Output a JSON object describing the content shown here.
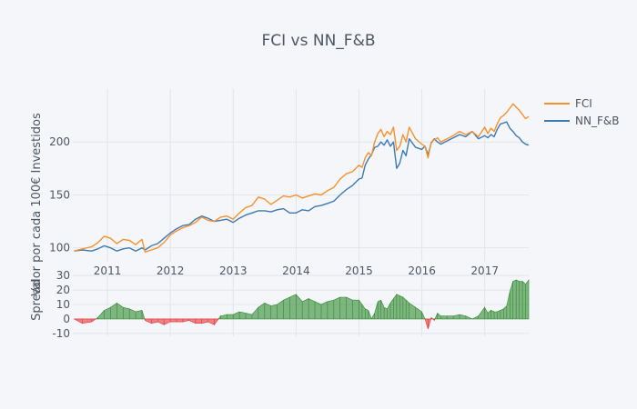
{
  "chart_data": {
    "type": "line",
    "title": "FCI vs NN_F&B",
    "xlabel": "",
    "ylabel_top": "Valor por cada 100€ Investidos",
    "ylabel_bottom": "Spread",
    "x_ticks": [
      "2011",
      "2012",
      "2013",
      "2014",
      "2015",
      "2016",
      "2017"
    ],
    "x_range": [
      2010.45,
      2017.7
    ],
    "top_panel": {
      "ylim": [
        92,
        250
      ],
      "y_ticks": [
        100,
        150,
        200
      ],
      "series": [
        {
          "name": "FCI",
          "color": "#f5922f",
          "x": [
            2010.47,
            2010.6,
            2010.75,
            2010.85,
            2010.95,
            2011.05,
            2011.15,
            2011.25,
            2011.35,
            2011.45,
            2011.55,
            2011.6,
            2011.7,
            2011.8,
            2011.9,
            2012.0,
            2012.1,
            2012.2,
            2012.3,
            2012.4,
            2012.5,
            2012.6,
            2012.7,
            2012.8,
            2012.9,
            2013.0,
            2013.1,
            2013.2,
            2013.3,
            2013.4,
            2013.5,
            2013.6,
            2013.7,
            2013.8,
            2013.9,
            2014.0,
            2014.1,
            2014.2,
            2014.3,
            2014.4,
            2014.5,
            2014.6,
            2014.7,
            2014.8,
            2014.9,
            2015.0,
            2015.05,
            2015.1,
            2015.15,
            2015.2,
            2015.25,
            2015.3,
            2015.35,
            2015.4,
            2015.45,
            2015.5,
            2015.55,
            2015.6,
            2015.65,
            2015.7,
            2015.75,
            2015.8,
            2015.9,
            2016.0,
            2016.05,
            2016.1,
            2016.15,
            2016.2,
            2016.25,
            2016.3,
            2016.4,
            2016.5,
            2016.6,
            2016.7,
            2016.8,
            2016.9,
            2017.0,
            2017.05,
            2017.1,
            2017.15,
            2017.2,
            2017.25,
            2017.3,
            2017.35,
            2017.4,
            2017.45,
            2017.5,
            2017.55,
            2017.6,
            2017.65,
            2017.7
          ],
          "values": [
            97,
            99,
            101,
            105,
            111,
            109,
            104,
            108,
            107,
            103,
            108,
            96,
            98,
            100,
            105,
            112,
            116,
            119,
            121,
            124,
            129,
            126,
            125,
            129,
            130,
            127,
            133,
            138,
            140,
            148,
            146,
            141,
            145,
            149,
            148,
            150,
            147,
            149,
            151,
            150,
            154,
            157,
            165,
            170,
            172,
            178,
            176,
            185,
            190,
            187,
            200,
            208,
            212,
            205,
            210,
            207,
            214,
            192,
            196,
            207,
            200,
            214,
            203,
            198,
            196,
            185,
            200,
            202,
            204,
            200,
            203,
            206,
            210,
            207,
            210,
            205,
            214,
            208,
            213,
            210,
            217,
            223,
            225,
            228,
            232,
            236,
            233,
            230,
            226,
            222,
            224
          ]
        },
        {
          "name": "NN_F&B",
          "color": "#3c7ab4",
          "x": [
            2010.47,
            2010.6,
            2010.75,
            2010.85,
            2010.95,
            2011.05,
            2011.15,
            2011.25,
            2011.35,
            2011.45,
            2011.55,
            2011.6,
            2011.7,
            2011.8,
            2011.9,
            2012.0,
            2012.1,
            2012.2,
            2012.3,
            2012.4,
            2012.5,
            2012.6,
            2012.7,
            2012.8,
            2012.9,
            2013.0,
            2013.1,
            2013.2,
            2013.3,
            2013.4,
            2013.5,
            2013.6,
            2013.7,
            2013.8,
            2013.9,
            2014.0,
            2014.1,
            2014.2,
            2014.3,
            2014.4,
            2014.5,
            2014.6,
            2014.7,
            2014.8,
            2014.9,
            2015.0,
            2015.05,
            2015.1,
            2015.15,
            2015.2,
            2015.25,
            2015.3,
            2015.35,
            2015.4,
            2015.45,
            2015.5,
            2015.55,
            2015.6,
            2015.65,
            2015.7,
            2015.75,
            2015.8,
            2015.9,
            2016.0,
            2016.05,
            2016.1,
            2016.15,
            2016.2,
            2016.25,
            2016.3,
            2016.4,
            2016.5,
            2016.6,
            2016.7,
            2016.8,
            2016.9,
            2017.0,
            2017.05,
            2017.1,
            2017.15,
            2017.2,
            2017.25,
            2017.3,
            2017.35,
            2017.4,
            2017.45,
            2017.5,
            2017.55,
            2017.6,
            2017.65,
            2017.7
          ],
          "values": [
            97,
            98,
            97,
            99,
            102,
            100,
            97,
            99,
            100,
            97,
            100,
            98,
            102,
            104,
            109,
            114,
            118,
            121,
            122,
            127,
            130,
            128,
            125,
            126,
            127,
            124,
            128,
            131,
            133,
            135,
            135,
            134,
            136,
            137,
            133,
            133,
            136,
            135,
            139,
            140,
            142,
            144,
            150,
            155,
            159,
            165,
            166,
            178,
            184,
            188,
            195,
            196,
            200,
            197,
            202,
            196,
            200,
            175,
            180,
            192,
            187,
            203,
            195,
            193,
            196,
            188,
            199,
            203,
            200,
            198,
            201,
            204,
            207,
            205,
            210,
            203,
            206,
            204,
            207,
            205,
            212,
            217,
            218,
            219,
            213,
            210,
            206,
            204,
            200,
            198,
            197
          ]
        }
      ]
    },
    "bottom_panel": {
      "ylim": [
        -12,
        32
      ],
      "y_ticks": [
        -10,
        0,
        10,
        20,
        30
      ],
      "series": [
        {
          "name": "Spread",
          "type": "area",
          "positive_color": "#2e8b2e",
          "negative_color": "#e83333",
          "x": [
            2010.47,
            2010.6,
            2010.75,
            2010.85,
            2010.95,
            2011.05,
            2011.15,
            2011.25,
            2011.35,
            2011.45,
            2011.55,
            2011.6,
            2011.7,
            2011.8,
            2011.9,
            2012.0,
            2012.1,
            2012.2,
            2012.3,
            2012.4,
            2012.5,
            2012.6,
            2012.7,
            2012.8,
            2012.9,
            2013.0,
            2013.1,
            2013.2,
            2013.3,
            2013.4,
            2013.5,
            2013.6,
            2013.7,
            2013.8,
            2013.9,
            2014.0,
            2014.1,
            2014.2,
            2014.3,
            2014.4,
            2014.5,
            2014.6,
            2014.7,
            2014.8,
            2014.9,
            2015.0,
            2015.05,
            2015.1,
            2015.15,
            2015.2,
            2015.25,
            2015.3,
            2015.35,
            2015.4,
            2015.45,
            2015.5,
            2015.55,
            2015.6,
            2015.65,
            2015.7,
            2015.75,
            2015.8,
            2015.9,
            2016.0,
            2016.05,
            2016.1,
            2016.15,
            2016.2,
            2016.25,
            2016.3,
            2016.4,
            2016.5,
            2016.6,
            2016.7,
            2016.8,
            2016.9,
            2017.0,
            2017.05,
            2017.1,
            2017.15,
            2017.2,
            2017.25,
            2017.3,
            2017.35,
            2017.4,
            2017.45,
            2017.5,
            2017.55,
            2017.6,
            2017.65,
            2017.7
          ],
          "values": [
            0,
            -3,
            -2,
            1,
            6,
            8,
            11,
            8,
            7,
            5,
            6,
            -1,
            -3,
            -2,
            -4,
            -2,
            -2,
            -2,
            -1,
            -3,
            -3,
            -2,
            -4,
            2,
            3,
            3,
            5,
            4,
            3,
            8,
            11,
            9,
            10,
            13,
            15,
            17,
            12,
            14,
            12,
            10,
            12,
            13,
            15,
            15,
            13,
            13,
            10,
            7,
            6,
            0,
            4,
            12,
            13,
            8,
            7,
            11,
            14,
            17,
            16,
            15,
            13,
            11,
            8,
            5,
            0,
            -7,
            1,
            -1,
            4,
            2,
            2,
            2,
            3,
            2,
            0,
            2,
            8,
            4,
            6,
            5,
            5,
            6,
            7,
            9,
            19,
            26,
            27,
            26,
            26,
            24,
            27
          ]
        }
      ]
    }
  }
}
